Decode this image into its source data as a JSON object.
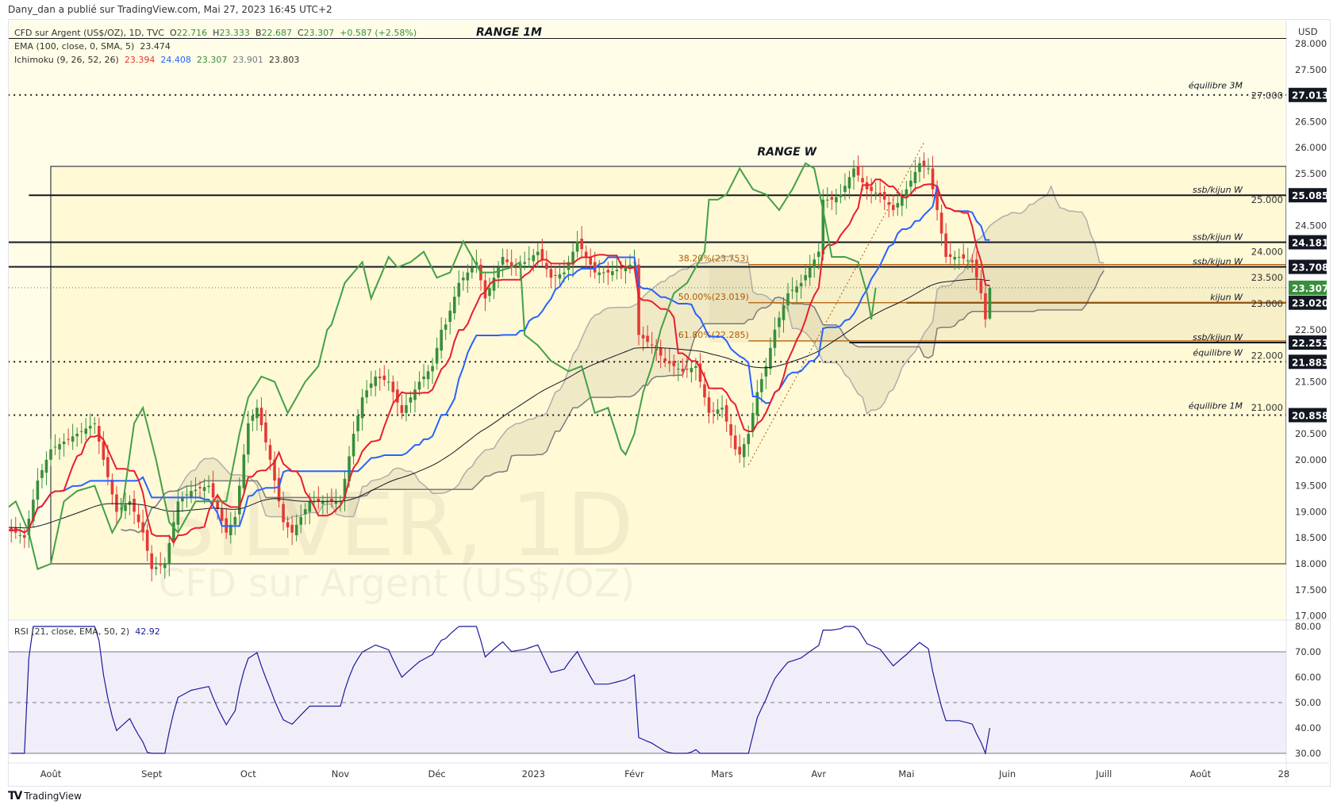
{
  "header": {
    "publisher_line": "Dany_dan a publié sur TradingView.com, Mai 27, 2023 16:45 UTC+2"
  },
  "legend": {
    "symbol": "CFD sur Argent (US$/OZ), 1D, TVC",
    "o_label": "O",
    "o": "22.716",
    "h_label": "H",
    "h": "23.333",
    "l_label": "B",
    "l": "22.687",
    "c_label": "C",
    "c": "23.307",
    "change": "+0.587 (+2.58%)",
    "ema_label": "EMA (100, close, 0, SMA, 5)",
    "ema_value": "23.474",
    "ichimoku_label": "Ichimoku (9, 26, 52, 26)",
    "ichimoku_values": [
      "23.394",
      "24.408",
      "23.307",
      "23.901",
      "23.803"
    ],
    "rsi_label": "RSI (21, close, EMA, 50, 2)",
    "rsi_value": "42.92"
  },
  "watermark": {
    "symbol": "SILVER, 1D",
    "name": "CFD sur Argent (US$/OZ)"
  },
  "branding": {
    "logo_text": "TradingView"
  },
  "colors": {
    "up": "#388e3c",
    "down": "#e53935",
    "tenkan": "#e91e2c",
    "kijun": "#2962ff",
    "chikou": "#43a047",
    "ema": "#131722",
    "rsi": "#1a1a9c",
    "fib": "#b05a00",
    "background": "#fffde7"
  },
  "chart_data": {
    "type": "candlestick",
    "title": "CFD sur Argent (US$/OZ), 1D, TVC",
    "x_unit": "trading days from 2022-08-01",
    "ylabel": "USD",
    "ylim": [
      17.0,
      28.0
    ],
    "last_candle": {
      "open": 22.716,
      "high": 23.333,
      "low": 22.687,
      "close": 23.307
    },
    "close_keypoints": [
      [
        -10,
        18.7
      ],
      [
        -6,
        18.5
      ],
      [
        -3,
        19.6
      ],
      [
        0,
        20.2
      ],
      [
        6,
        20.5
      ],
      [
        10,
        20.7
      ],
      [
        12,
        20.0
      ],
      [
        15,
        19.0
      ],
      [
        18,
        19.2
      ],
      [
        21,
        18.6
      ],
      [
        23,
        17.9
      ],
      [
        26,
        18.0
      ],
      [
        29,
        19.2
      ],
      [
        32,
        19.4
      ],
      [
        36,
        19.5
      ],
      [
        40,
        18.6
      ],
      [
        42,
        18.9
      ],
      [
        45,
        20.7
      ],
      [
        47,
        21.0
      ],
      [
        50,
        20.0
      ],
      [
        53,
        18.8
      ],
      [
        55,
        18.6
      ],
      [
        59,
        19.2
      ],
      [
        63,
        19.2
      ],
      [
        66,
        19.2
      ],
      [
        69,
        20.5
      ],
      [
        71,
        21.2
      ],
      [
        74,
        21.6
      ],
      [
        77,
        21.5
      ],
      [
        80,
        20.9
      ],
      [
        84,
        21.5
      ],
      [
        87,
        21.8
      ],
      [
        89,
        22.5
      ],
      [
        90,
        22.6
      ],
      [
        93,
        23.4
      ],
      [
        97,
        23.8
      ],
      [
        99,
        23.1
      ],
      [
        103,
        23.9
      ],
      [
        105,
        23.7
      ],
      [
        108,
        23.8
      ],
      [
        111,
        24.0
      ],
      [
        114,
        23.5
      ],
      [
        117,
        23.6
      ],
      [
        120,
        24.2
      ],
      [
        124,
        23.6
      ],
      [
        127,
        23.6
      ],
      [
        131,
        23.7
      ],
      [
        133,
        23.8
      ],
      [
        134,
        22.4
      ],
      [
        137,
        22.2
      ],
      [
        140,
        21.9
      ],
      [
        144,
        21.7
      ],
      [
        147,
        21.8
      ],
      [
        150,
        20.9
      ],
      [
        153,
        21.0
      ],
      [
        156,
        20.2
      ],
      [
        157,
        20.1
      ],
      [
        159,
        20.5
      ],
      [
        161,
        21.3
      ],
      [
        163,
        21.8
      ],
      [
        165,
        22.5
      ],
      [
        168,
        23.2
      ],
      [
        171,
        23.4
      ],
      [
        175,
        24.0
      ],
      [
        176,
        25.0
      ],
      [
        178,
        25.0
      ],
      [
        180,
        25.1
      ],
      [
        183,
        25.6
      ],
      [
        186,
        25.2
      ],
      [
        189,
        25.1
      ],
      [
        192,
        24.8
      ],
      [
        195,
        25.2
      ],
      [
        198,
        25.7
      ],
      [
        200,
        25.6
      ],
      [
        202,
        24.8
      ],
      [
        204,
        23.9
      ],
      [
        207,
        23.9
      ],
      [
        210,
        23.8
      ],
      [
        212,
        23.2
      ],
      [
        213,
        22.7
      ],
      [
        214,
        23.307
      ]
    ],
    "price_ticks": [
      "28.000",
      "27.500",
      "27.000",
      "26.500",
      "26.000",
      "25.500",
      "25.000",
      "24.500",
      "24.000",
      "23.500",
      "23.000",
      "22.500",
      "22.000",
      "21.500",
      "21.000",
      "20.500",
      "20.000",
      "19.500",
      "19.000",
      "18.500",
      "18.000",
      "17.500",
      "17.000"
    ],
    "rsi_ticks": [
      "80.00",
      "70.00",
      "60.00",
      "50.00",
      "40.00",
      "30.00"
    ],
    "rsi_bands": {
      "upper": 70,
      "middle": 50,
      "lower": 30
    },
    "date_ticks": [
      {
        "label": "Août",
        "d": 0
      },
      {
        "label": "Sept",
        "d": 23
      },
      {
        "label": "Oct",
        "d": 45
      },
      {
        "label": "Nov",
        "d": 66
      },
      {
        "label": "Déc",
        "d": 88
      },
      {
        "label": "2023",
        "d": 110
      },
      {
        "label": "Févr",
        "d": 133
      },
      {
        "label": "Mars",
        "d": 153
      },
      {
        "label": "Avr",
        "d": 175
      },
      {
        "label": "Mai",
        "d": 195
      },
      {
        "label": "Juin",
        "d": 218
      },
      {
        "label": "Juill",
        "d": 240
      },
      {
        "label": "Août",
        "d": 262
      },
      {
        "label": "28",
        "d": 281
      }
    ],
    "levels": [
      {
        "price": 27.013,
        "label": "équilibre 3M",
        "badge": "27.013",
        "style": "dotted",
        "from_d": -11
      },
      {
        "price": 25.085,
        "label": "ssb/kijun W",
        "badge": "25.085",
        "style": "solid",
        "from_d": -5
      },
      {
        "price": 24.181,
        "label": "ssb/kijun W",
        "badge": "24.181",
        "style": "solid",
        "from_d": -11
      },
      {
        "price": 23.708,
        "label": "ssb/kijun W",
        "badge": "23.708",
        "style": "solid",
        "from_d": -11
      },
      {
        "price": 23.02,
        "label": "kijun W",
        "badge": "23.020",
        "style": "solid",
        "from_d": 195
      },
      {
        "price": 22.253,
        "label": "ssb/kijun W",
        "badge": "22.253",
        "style": "solid",
        "from_d": 182
      },
      {
        "price": 21.883,
        "label": "équilibre W",
        "badge": "21.883",
        "style": "dotted",
        "from_d": -11
      },
      {
        "price": 20.858,
        "label": "équilibre 1M",
        "badge": "20.858",
        "style": "dotted",
        "from_d": -11
      }
    ],
    "current_price": {
      "price": 23.307,
      "badge": "23.307"
    },
    "fib": [
      {
        "price": 23.753,
        "label": "38.20%(23.753)"
      },
      {
        "price": 23.019,
        "label": "50.00%(23.019)"
      },
      {
        "price": 22.285,
        "label": "61.80%(22.285)"
      }
    ],
    "fib_from_d": 159,
    "fib_label_d": 143,
    "trend_line": [
      [
        159,
        19.9
      ],
      [
        199,
        26.1
      ]
    ],
    "range_1m": {
      "label": "RANGE 1M",
      "top": 28.1
    },
    "range_w": {
      "label": "RANGE W",
      "top": 25.64,
      "bottom": 18.0,
      "from_d": 0,
      "label_d": 161,
      "label_price": 25.85
    },
    "zone": {
      "top": 23.708,
      "bottom": 22.253,
      "from_d": 150
    }
  }
}
